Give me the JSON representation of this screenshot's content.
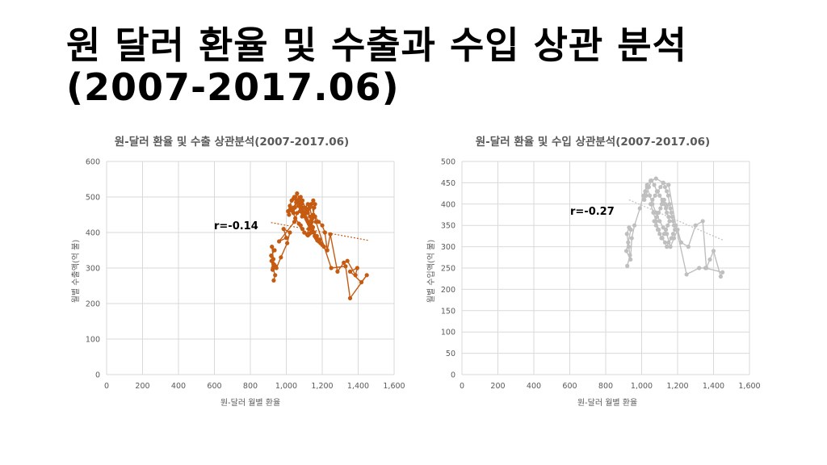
{
  "slide": {
    "title_line1": "원 달러 환율 및 수출과 수입 상관 분석",
    "title_line2": "(2007-2017.06)"
  },
  "chart_data": [
    {
      "type": "scatter",
      "title": "원-달러 환율 및 수출 상관분석(2007-2017.06)",
      "xlabel": "원-달러 월별 환율",
      "ylabel": "월별 수출액(억 불)",
      "xlim": [
        0,
        1600
      ],
      "ylim": [
        0,
        600
      ],
      "xticks": [
        0,
        200,
        400,
        600,
        800,
        1000,
        1200,
        1400,
        1600
      ],
      "xtick_labels": [
        "0",
        "200",
        "400",
        "600",
        "800",
        "1,000",
        "1,200",
        "1,400",
        "1,600"
      ],
      "yticks": [
        0,
        100,
        200,
        300,
        400,
        500,
        600
      ],
      "ytick_labels": [
        "0",
        "100",
        "200",
        "300",
        "400",
        "500",
        "600"
      ],
      "grid": true,
      "connected": true,
      "color": "#C55A11",
      "annotation": "r=-0.14",
      "trendline": {
        "x": [
          915,
          1455
        ],
        "y": [
          428,
          378
        ]
      },
      "series": [
        {
          "x": [
            930,
            938,
            926,
            916,
            935,
            920,
            928,
            932,
            924,
            918,
            940,
            945,
            970,
            1005,
            1020,
            985,
            1000,
            960,
            1045,
            1060,
            1080,
            1120,
            1140,
            1165,
            1250,
            1330,
            1355,
            1448,
            1418,
            1355,
            1395,
            1385,
            1340,
            1320,
            1285,
            1245,
            1228,
            1215,
            1200,
            1180,
            1160,
            1145,
            1130,
            1120,
            1105,
            1090,
            1080,
            1070,
            1055,
            1040,
            1025,
            1015,
            1010,
            1020,
            1030,
            1045,
            1060,
            1072,
            1085,
            1095,
            1110,
            1120,
            1132,
            1140,
            1150,
            1155,
            1160,
            1150,
            1138,
            1128,
            1118,
            1108,
            1098,
            1088,
            1078,
            1068,
            1058,
            1048,
            1040,
            1035,
            1050,
            1070,
            1080,
            1090,
            1100,
            1115,
            1125,
            1135,
            1142,
            1148,
            1152,
            1158,
            1165,
            1172,
            1180,
            1190,
            1200,
            1210,
            1185,
            1170,
            1155,
            1145,
            1130,
            1120,
            1110,
            1100,
            1090,
            1080,
            1070,
            1060,
            1050,
            1040,
            1065,
            1075,
            1085,
            1095,
            1105,
            1115,
            1125,
            1135,
            1145,
            1138,
            1132,
            1126,
            1120
          ],
          "y": [
            265,
            280,
            300,
            335,
            350,
            360,
            325,
            310,
            295,
            320,
            305,
            300,
            330,
            370,
            400,
            410,
            385,
            375,
            430,
            455,
            470,
            465,
            480,
            430,
            300,
            305,
            215,
            280,
            260,
            290,
            300,
            280,
            320,
            315,
            290,
            395,
            350,
            400,
            420,
            430,
            445,
            440,
            470,
            480,
            470,
            490,
            500,
            480,
            485,
            470,
            465,
            450,
            460,
            475,
            490,
            500,
            510,
            495,
            480,
            470,
            460,
            455,
            445,
            435,
            450,
            470,
            480,
            490,
            480,
            470,
            460,
            455,
            450,
            445,
            460,
            475,
            485,
            470,
            455,
            460,
            440,
            425,
            420,
            410,
            400,
            395,
            410,
            420,
            430,
            415,
            400,
            390,
            385,
            378,
            375,
            370,
            365,
            360,
            380,
            390,
            400,
            410,
            420,
            430,
            440,
            450,
            460,
            470,
            480,
            490,
            500,
            495,
            485,
            475,
            465,
            455,
            445,
            435,
            425,
            415,
            405,
            400,
            398,
            395,
            392
          ]
        }
      ]
    },
    {
      "type": "scatter",
      "title": "원-달러 환율 및 수입 상관분석(2007-2017.06)",
      "xlabel": "원-달러 월별 환율",
      "ylabel": "월별 수입액(억 불)",
      "xlim": [
        0,
        1600
      ],
      "ylim": [
        0,
        500
      ],
      "xticks": [
        0,
        200,
        400,
        600,
        800,
        1000,
        1200,
        1400,
        1600
      ],
      "xtick_labels": [
        "0",
        "200",
        "400",
        "600",
        "800",
        "1,000",
        "1,200",
        "1,400",
        "1,600"
      ],
      "yticks": [
        0,
        50,
        100,
        150,
        200,
        250,
        300,
        350,
        400,
        450,
        500
      ],
      "ytick_labels": [
        "0",
        "50",
        "100",
        "150",
        "200",
        "250",
        "300",
        "350",
        "400",
        "450",
        "500"
      ],
      "grid": true,
      "connected": true,
      "color": "#BFBFBF",
      "annotation": "r=-0.27",
      "trendline": {
        "x": [
          930,
          1455
        ],
        "y": [
          410,
          315
        ]
      },
      "series": [
        {
          "x": [
            920,
            935,
            928,
            918,
            930,
            940,
            925,
            915,
            938,
            945,
            960,
            990,
            1010,
            1030,
            1050,
            1080,
            1120,
            1150,
            1190,
            1250,
            1320,
            1355,
            1450,
            1440,
            1400,
            1380,
            1360,
            1340,
            1300,
            1260,
            1220,
            1200,
            1180,
            1160,
            1140,
            1120,
            1100,
            1080,
            1060,
            1045,
            1030,
            1020,
            1015,
            1025,
            1040,
            1055,
            1070,
            1085,
            1100,
            1115,
            1125,
            1135,
            1140,
            1150,
            1155,
            1145,
            1135,
            1125,
            1110,
            1095,
            1080,
            1065,
            1050,
            1060,
            1075,
            1090,
            1105,
            1120,
            1130,
            1140,
            1148,
            1155,
            1160,
            1165,
            1170,
            1175,
            1180,
            1185,
            1175,
            1165,
            1150,
            1140,
            1130,
            1115,
            1100,
            1090,
            1080,
            1070,
            1085,
            1095,
            1105,
            1112,
            1118,
            1125,
            1132,
            1138
          ],
          "y": [
            255,
            280,
            300,
            330,
            345,
            340,
            310,
            290,
            270,
            320,
            350,
            390,
            420,
            445,
            455,
            460,
            450,
            445,
            350,
            235,
            250,
            250,
            240,
            230,
            290,
            270,
            250,
            360,
            350,
            300,
            310,
            340,
            320,
            300,
            330,
            345,
            360,
            380,
            400,
            420,
            440,
            430,
            410,
            420,
            440,
            455,
            445,
            430,
            420,
            410,
            400,
            390,
            380,
            370,
            360,
            350,
            340,
            330,
            320,
            340,
            360,
            380,
            400,
            410,
            420,
            430,
            440,
            450,
            440,
            430,
            420,
            400,
            390,
            380,
            370,
            360,
            350,
            340,
            330,
            320,
            310,
            300,
            310,
            320,
            330,
            340,
            350,
            360,
            370,
            380,
            390,
            400,
            405,
            410,
            400,
            395
          ]
        }
      ]
    }
  ]
}
